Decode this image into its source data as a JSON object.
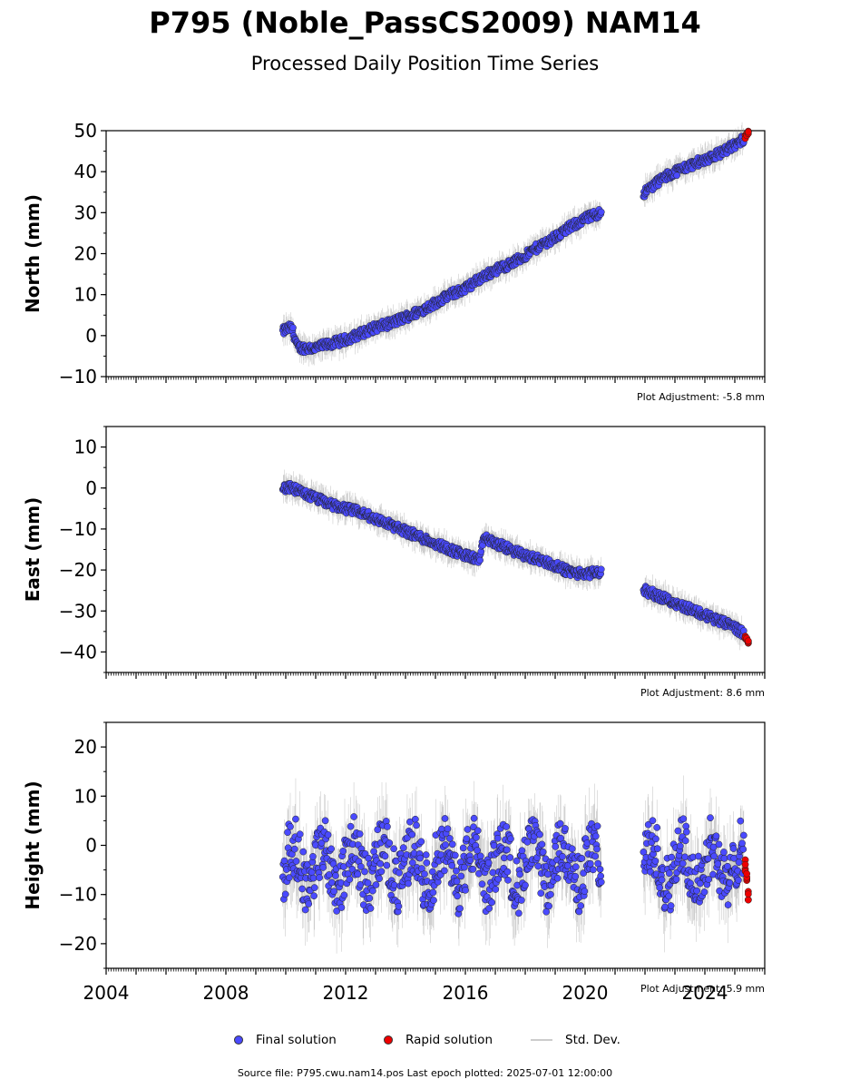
{
  "title": "P795 (Noble_PassCS2009) NAM14",
  "subtitle": "Processed Daily Position Time Series",
  "legend": {
    "final_label": "Final solution",
    "rapid_label": "Rapid solution",
    "std_label": "Std. Dev.",
    "final_color": "#4a4aff",
    "rapid_color": "#ee0000",
    "std_color": "#cccccc"
  },
  "footer": "Source file: P795.cwu.nam14.pos  Last epoch plotted: 2025-07-01 12:00:00",
  "chart_data": [
    {
      "type": "scatter",
      "ylabel": "North (mm)",
      "ylim": [
        -10,
        50
      ],
      "yticks": [
        -10,
        0,
        10,
        20,
        30,
        40,
        50
      ],
      "xlim": [
        2004.0,
        2026.0
      ],
      "xticks": [
        2004,
        2008,
        2012,
        2016,
        2020,
        2024
      ],
      "adjustment": "Plot Adjustment: -5.8 mm",
      "series": [
        {
          "name": "Final solution",
          "x": [
            2009.9,
            2010.0,
            2010.2,
            2010.4,
            2010.6,
            2011.0,
            2011.5,
            2012.0,
            2012.5,
            2013.0,
            2013.5,
            2014.0,
            2014.5,
            2015.0,
            2015.5,
            2016.0,
            2016.5,
            2017.0,
            2017.5,
            2018.0,
            2018.5,
            2019.0,
            2019.5,
            2020.0,
            2020.5,
            2022.0,
            2022.5,
            2023.0,
            2023.5,
            2024.0,
            2024.5,
            2025.0,
            2025.3
          ],
          "y": [
            1,
            1.5,
            2,
            -3,
            -3,
            -3,
            -2,
            -1,
            0.5,
            2,
            3,
            4.5,
            6,
            8,
            10,
            11.5,
            14,
            16,
            17.5,
            19.5,
            22,
            24,
            26.5,
            28.5,
            30,
            35,
            38,
            40,
            41.5,
            43,
            44.5,
            46.5,
            48
          ]
        },
        {
          "name": "Rapid solution",
          "x": [
            2025.35,
            2025.4,
            2025.45
          ],
          "y": [
            48.5,
            49,
            49.5
          ]
        }
      ]
    },
    {
      "type": "scatter",
      "ylabel": "East (mm)",
      "ylim": [
        -45,
        15
      ],
      "yticks": [
        -40,
        -30,
        -20,
        -10,
        0,
        10
      ],
      "xlim": [
        2004.0,
        2026.0
      ],
      "xticks": [
        2004,
        2008,
        2012,
        2016,
        2020,
        2024
      ],
      "adjustment": "Plot Adjustment: 8.6 mm",
      "series": [
        {
          "name": "Final solution",
          "x": [
            2009.9,
            2010.2,
            2010.5,
            2011.0,
            2011.5,
            2012.0,
            2012.5,
            2013.0,
            2013.5,
            2014.0,
            2014.5,
            2015.0,
            2015.5,
            2016.0,
            2016.5,
            2016.6,
            2017.0,
            2017.5,
            2018.0,
            2018.5,
            2019.0,
            2019.5,
            2020.0,
            2020.5,
            2022.0,
            2022.5,
            2023.0,
            2023.5,
            2024.0,
            2024.5,
            2025.0,
            2025.3
          ],
          "y": [
            0,
            0,
            -1,
            -2.5,
            -4,
            -5,
            -6,
            -7.5,
            -9,
            -10.5,
            -12,
            -13.5,
            -15,
            -16.5,
            -17.5,
            -12,
            -13.5,
            -15,
            -16.5,
            -17.5,
            -19,
            -20.5,
            -21,
            -20.5,
            -25,
            -26.5,
            -28,
            -29.5,
            -31,
            -32.5,
            -34,
            -35.5
          ]
        },
        {
          "name": "Rapid solution",
          "x": [
            2025.35,
            2025.4,
            2025.45
          ],
          "y": [
            -36.5,
            -37,
            -37.5
          ]
        }
      ]
    },
    {
      "type": "scatter",
      "ylabel": "Height (mm)",
      "ylim": [
        -25,
        25
      ],
      "yticks": [
        -20,
        -10,
        0,
        10,
        20
      ],
      "xlim": [
        2004.0,
        2026.0
      ],
      "xticks": [
        2004,
        2008,
        2012,
        2016,
        2020,
        2024
      ],
      "adjustment": "Plot Adjustment: 5.9 mm",
      "series": [
        {
          "name": "Final solution",
          "x": [
            2009.9,
            2010.3,
            2010.8,
            2011.3,
            2011.8,
            2012.3,
            2012.8,
            2013.3,
            2013.8,
            2014.3,
            2014.8,
            2015.3,
            2015.8,
            2016.3,
            2016.8,
            2017.3,
            2017.8,
            2018.3,
            2018.8,
            2019.3,
            2019.8,
            2020.3,
            2022.0,
            2022.5,
            2023.0,
            2023.5,
            2024.0,
            2024.5,
            2025.0
          ],
          "y": [
            -6,
            -8,
            2,
            -7,
            0,
            -6,
            2,
            -7,
            1,
            -5,
            3,
            -6,
            1,
            -6,
            3,
            -6,
            2,
            -5,
            3,
            -6,
            1,
            -6,
            -2,
            -4,
            2,
            -4,
            1,
            -6,
            -4
          ]
        },
        {
          "name": "Rapid solution",
          "x": [
            2025.35,
            2025.4,
            2025.45
          ],
          "y": [
            -4,
            -7,
            -10
          ]
        }
      ]
    }
  ]
}
